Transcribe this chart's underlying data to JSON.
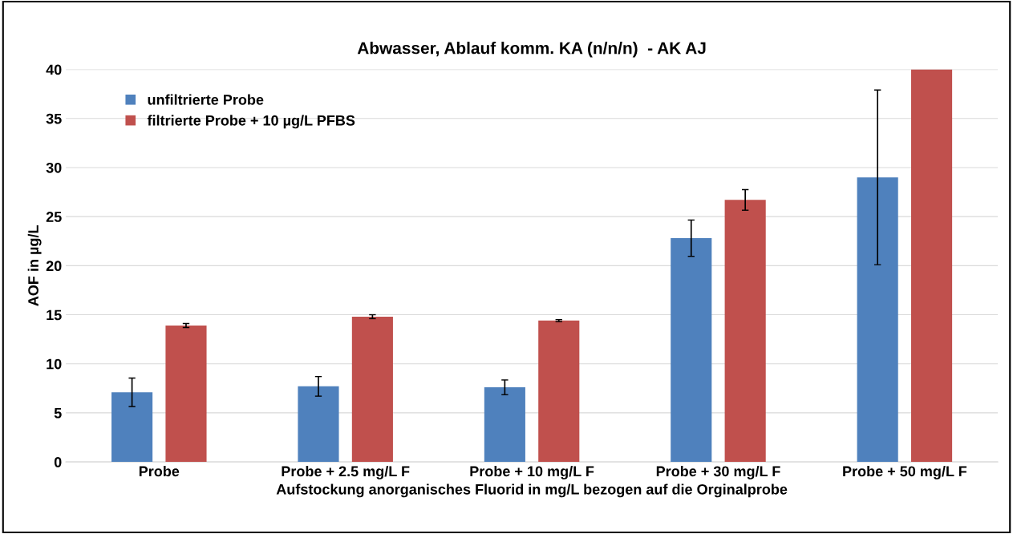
{
  "chart_data": {
    "type": "bar",
    "title": "Abwasser, Ablauf komm. KA (n/n/n)  - AK AJ",
    "xlabel": "Aufstockung anorganisches Fluorid in mg/L bezogen auf die Orginalprobe",
    "ylabel": "AOF in µg/L",
    "categories": [
      "Probe",
      "Probe + 2.5 mg/L F",
      "Probe + 10 mg/L F",
      "Probe + 30 mg/L F",
      "Probe + 50 mg/L F"
    ],
    "series": [
      {
        "name": "unfiltrierte Probe",
        "color": "#4f81bd",
        "values": [
          7.1,
          7.7,
          7.6,
          22.8,
          29.0
        ],
        "errors": [
          1.45,
          1.0,
          0.75,
          1.85,
          8.9
        ]
      },
      {
        "name": "filtrierte Probe + 10 µg/L PFBS",
        "color": "#c0504d",
        "values": [
          13.9,
          14.8,
          14.4,
          26.7,
          40
        ],
        "errors": [
          0.2,
          0.2,
          0.1,
          1.05,
          null
        ]
      }
    ],
    "ylim": [
      0,
      40
    ],
    "yticks": [
      0,
      5,
      10,
      15,
      20,
      25,
      30,
      35,
      40
    ],
    "grid": "y",
    "legend": "top left"
  }
}
